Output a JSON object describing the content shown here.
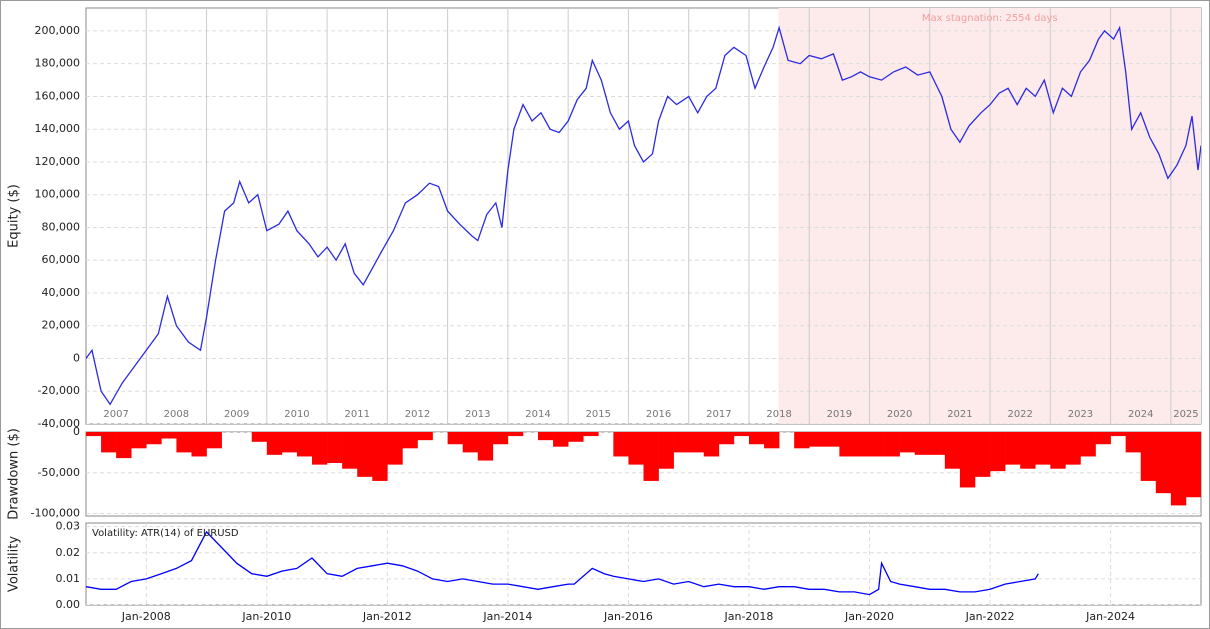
{
  "chart_data": [
    {
      "type": "line",
      "ylabel": "Equity ($)",
      "color": "#2b2be0",
      "xlim": [
        2007.0,
        2025.5
      ],
      "ylim": [
        -40000,
        214000
      ],
      "yticks": [
        {
          "value": -40000,
          "label": "-40,000"
        },
        {
          "value": -20000,
          "label": "-20,000"
        },
        0,
        {
          "value": 20000,
          "label": "20,000"
        },
        {
          "value": 40000,
          "label": "40,000"
        },
        {
          "value": 60000,
          "label": "60,000"
        },
        {
          "value": 80000,
          "label": "80,000"
        },
        {
          "value": 100000,
          "label": "100,000"
        },
        {
          "value": 120000,
          "label": "120,000"
        },
        {
          "value": 140000,
          "label": "140,000"
        },
        {
          "value": 160000,
          "label": "160,000"
        },
        {
          "value": 180000,
          "label": "180,000"
        },
        {
          "value": 200000,
          "label": "200,000"
        }
      ],
      "xticks": [
        2008,
        2009,
        2010,
        2011,
        2012,
        2013,
        2014,
        2015,
        2016,
        2017,
        2018,
        2019,
        2020,
        2021,
        2022,
        2023,
        2024,
        2025
      ],
      "year_labels": [
        2007,
        2008,
        2009,
        2010,
        2011,
        2012,
        2013,
        2014,
        2015,
        2016,
        2017,
        2018,
        2019,
        2020,
        2021,
        2022,
        2023,
        2024,
        2025
      ],
      "stagnation": {
        "label": "Max stagnation: 2554 days",
        "xlim": [
          2018.49,
          2025.5
        ]
      },
      "x": [
        2007.0,
        2007.1,
        2007.25,
        2007.4,
        2007.6,
        2007.8,
        2008.0,
        2008.2,
        2008.35,
        2008.5,
        2008.7,
        2008.9,
        2009.0,
        2009.15,
        2009.3,
        2009.45,
        2009.55,
        2009.7,
        2009.85,
        2010.0,
        2010.2,
        2010.35,
        2010.5,
        2010.7,
        2010.85,
        2011.0,
        2011.15,
        2011.3,
        2011.45,
        2011.6,
        2011.75,
        2011.9,
        2012.1,
        2012.3,
        2012.5,
        2012.7,
        2012.85,
        2013.0,
        2013.2,
        2013.4,
        2013.5,
        2013.65,
        2013.8,
        2013.9,
        2014.0,
        2014.1,
        2014.25,
        2014.4,
        2014.55,
        2014.7,
        2014.85,
        2015.0,
        2015.15,
        2015.3,
        2015.4,
        2015.55,
        2015.7,
        2015.85,
        2016.0,
        2016.1,
        2016.25,
        2016.4,
        2016.5,
        2016.65,
        2016.8,
        2017.0,
        2017.15,
        2017.3,
        2017.45,
        2017.6,
        2017.75,
        2017.95,
        2018.1,
        2018.25,
        2018.4,
        2018.5,
        2018.65,
        2018.85,
        2019.0,
        2019.2,
        2019.4,
        2019.55,
        2019.7,
        2019.85,
        2020.0,
        2020.2,
        2020.4,
        2020.6,
        2020.8,
        2021.0,
        2021.2,
        2021.35,
        2021.5,
        2021.65,
        2021.85,
        2022.0,
        2022.15,
        2022.3,
        2022.45,
        2022.6,
        2022.75,
        2022.9,
        2023.05,
        2023.2,
        2023.35,
        2023.5,
        2023.65,
        2023.8,
        2023.9,
        2024.05,
        2024.15,
        2024.25,
        2024.35,
        2024.5,
        2024.65,
        2024.8,
        2024.95,
        2025.1,
        2025.25,
        2025.35,
        2025.45,
        2025.5
      ],
      "values": [
        0,
        5000,
        -20000,
        -28000,
        -15000,
        -5000,
        5000,
        15000,
        38000,
        20000,
        10000,
        5000,
        25000,
        60000,
        90000,
        95000,
        108000,
        95000,
        100000,
        78000,
        82000,
        90000,
        78000,
        70000,
        62000,
        68000,
        60000,
        70000,
        52000,
        45000,
        55000,
        65000,
        78000,
        95000,
        100000,
        107000,
        105000,
        90000,
        82000,
        75000,
        72000,
        88000,
        95000,
        80000,
        115000,
        140000,
        155000,
        145000,
        150000,
        140000,
        138000,
        145000,
        158000,
        165000,
        182000,
        170000,
        150000,
        140000,
        145000,
        130000,
        120000,
        125000,
        145000,
        160000,
        155000,
        160000,
        150000,
        160000,
        165000,
        185000,
        190000,
        185000,
        165000,
        178000,
        190000,
        202000,
        182000,
        180000,
        185000,
        183000,
        186000,
        170000,
        172000,
        175000,
        172000,
        170000,
        175000,
        178000,
        173000,
        175000,
        160000,
        140000,
        132000,
        142000,
        150000,
        155000,
        162000,
        165000,
        155000,
        165000,
        160000,
        170000,
        150000,
        165000,
        160000,
        175000,
        182000,
        195000,
        200000,
        195000,
        202000,
        175000,
        140000,
        150000,
        135000,
        125000,
        110000,
        118000,
        130000,
        148000,
        115000,
        130000
      ]
    },
    {
      "type": "bar",
      "ylabel": "Drawdown ($)",
      "color": "#ff0000",
      "xlim": [
        2007.0,
        2025.5
      ],
      "ylim": [
        -103000,
        0
      ],
      "yticks": [
        0,
        {
          "value": -50000,
          "label": "-50,000"
        },
        {
          "value": -100000,
          "label": "-100,000"
        }
      ],
      "x": [
        2007.0,
        2007.25,
        2007.5,
        2007.75,
        2008.0,
        2008.25,
        2008.5,
        2008.75,
        2009.0,
        2009.25,
        2009.5,
        2009.75,
        2010.0,
        2010.25,
        2010.5,
        2010.75,
        2011.0,
        2011.25,
        2011.5,
        2011.75,
        2012.0,
        2012.25,
        2012.5,
        2012.75,
        2013.0,
        2013.25,
        2013.5,
        2013.75,
        2014.0,
        2014.25,
        2014.5,
        2014.75,
        2015.0,
        2015.25,
        2015.5,
        2015.75,
        2016.0,
        2016.25,
        2016.5,
        2016.75,
        2017.0,
        2017.25,
        2017.5,
        2017.75,
        2018.0,
        2018.25,
        2018.5,
        2018.75,
        2019.0,
        2019.25,
        2019.5,
        2019.75,
        2020.0,
        2020.25,
        2020.5,
        2020.75,
        2021.0,
        2021.25,
        2021.5,
        2021.75,
        2022.0,
        2022.25,
        2022.5,
        2022.75,
        2023.0,
        2023.25,
        2023.5,
        2023.75,
        2024.0,
        2024.25,
        2024.5,
        2024.75,
        2025.0,
        2025.25
      ],
      "values": [
        -5000,
        -25000,
        -32000,
        -20000,
        -15000,
        -8000,
        -25000,
        -30000,
        -20000,
        0,
        0,
        -12000,
        -28000,
        -25000,
        -30000,
        -40000,
        -38000,
        -45000,
        -55000,
        -60000,
        -40000,
        -20000,
        -10000,
        0,
        -15000,
        -25000,
        -35000,
        -15000,
        -5000,
        0,
        -10000,
        -18000,
        -12000,
        -5000,
        0,
        -30000,
        -40000,
        -60000,
        -45000,
        -25000,
        -25000,
        -30000,
        -15000,
        -5000,
        -15000,
        -20000,
        0,
        -20000,
        -18000,
        -18000,
        -30000,
        -30000,
        -30000,
        -30000,
        -25000,
        -28000,
        -28000,
        -45000,
        -68000,
        -55000,
        -48000,
        -40000,
        -45000,
        -40000,
        -45000,
        -40000,
        -30000,
        -15000,
        -5000,
        -25000,
        -60000,
        -75000,
        -90000,
        -80000
      ]
    },
    {
      "type": "line",
      "ylabel": "Volatility",
      "legend_label": "Volatility: ATR(14) of EURUSD",
      "color": "#0000ff",
      "xlim": [
        2007.0,
        2025.5
      ],
      "ylim": [
        0,
        0.0314
      ],
      "yticks": [
        {
          "value": 0,
          "label": "0.00"
        },
        0.01,
        0.02,
        0.03
      ],
      "xticks": [
        {
          "value": 2008,
          "label": "Jan-2008"
        },
        {
          "value": 2010,
          "label": "Jan-2010"
        },
        {
          "value": 2012,
          "label": "Jan-2012"
        },
        {
          "value": 2014,
          "label": "Jan-2014"
        },
        {
          "value": 2016,
          "label": "Jan-2016"
        },
        {
          "value": 2018,
          "label": "Jan-2018"
        },
        {
          "value": 2020,
          "label": "Jan-2020"
        },
        {
          "value": 2022,
          "label": "Jan-2022"
        },
        {
          "value": 2024,
          "label": "Jan-2024"
        }
      ],
      "x": [
        2007.0,
        2007.25,
        2007.5,
        2007.75,
        2008.0,
        2008.25,
        2008.5,
        2008.75,
        2009.0,
        2009.25,
        2009.5,
        2009.75,
        2010.0,
        2010.25,
        2010.5,
        2010.75,
        2011.0,
        2011.25,
        2011.5,
        2011.75,
        2012.0,
        2012.25,
        2012.5,
        2012.75,
        2013.0,
        2013.25,
        2013.5,
        2013.75,
        2014.0,
        2014.25,
        2014.5,
        2014.75,
        2015.0,
        2015.1,
        2015.4,
        2015.6,
        2015.75,
        2016.0,
        2016.25,
        2016.5,
        2016.75,
        2017.0,
        2017.25,
        2017.5,
        2017.75,
        2018.0,
        2018.25,
        2018.5,
        2018.75,
        2019.0,
        2019.25,
        2019.5,
        2019.75,
        2020.0,
        2020.15,
        2020.2,
        2020.35,
        2020.5,
        2020.75,
        2021.0,
        2021.25,
        2021.5,
        2021.75,
        2022.0,
        2022.25,
        2022.5,
        2022.75,
        2022.8
      ],
      "values": [
        0.007,
        0.006,
        0.006,
        0.009,
        0.01,
        0.012,
        0.014,
        0.017,
        0.028,
        0.022,
        0.016,
        0.012,
        0.011,
        0.013,
        0.014,
        0.018,
        0.012,
        0.011,
        0.014,
        0.015,
        0.016,
        0.015,
        0.013,
        0.01,
        0.009,
        0.01,
        0.009,
        0.008,
        0.008,
        0.007,
        0.006,
        0.007,
        0.008,
        0.008,
        0.014,
        0.012,
        0.011,
        0.01,
        0.009,
        0.01,
        0.008,
        0.009,
        0.007,
        0.008,
        0.007,
        0.007,
        0.006,
        0.007,
        0.007,
        0.006,
        0.006,
        0.005,
        0.005,
        0.004,
        0.006,
        0.016,
        0.009,
        0.008,
        0.007,
        0.006,
        0.006,
        0.005,
        0.005,
        0.006,
        0.008,
        0.009,
        0.01,
        0.012
      ]
    }
  ]
}
